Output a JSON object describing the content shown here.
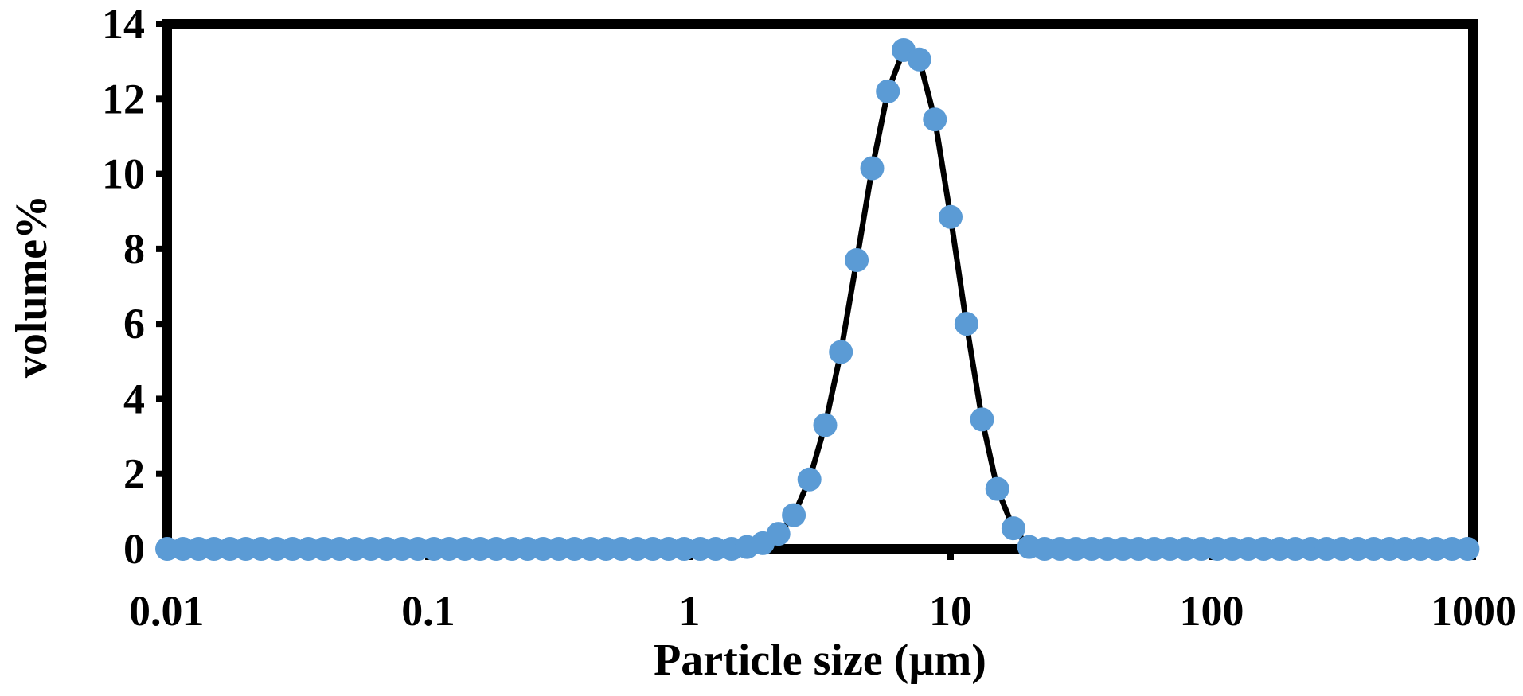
{
  "chart_data": {
    "type": "line",
    "xlabel": "Particle size (µm)",
    "ylabel": "volume%",
    "x_scale": "log",
    "xlim": [
      0.01,
      1000
    ],
    "ylim": [
      0,
      14
    ],
    "x_tick_values": [
      0.01,
      0.1,
      1,
      10,
      100,
      1000
    ],
    "x_tick_labels": [
      "0.01",
      "0.1",
      "1",
      "10",
      "100",
      "1000"
    ],
    "y_tick_values": [
      0,
      2,
      4,
      6,
      8,
      10,
      12,
      14
    ],
    "y_tick_labels": [
      "0",
      "2",
      "4",
      "6",
      "8",
      "10",
      "12",
      "14"
    ],
    "grid": false,
    "line_color": "#000000",
    "marker_color": "#5b9bd5",
    "series": [
      {
        "x": [
          0.01,
          0.0115,
          0.0132,
          0.0151,
          0.0174,
          0.02,
          0.0229,
          0.0263,
          0.0302,
          0.0347,
          0.0398,
          0.0457,
          0.0525,
          0.0603,
          0.0692,
          0.0794,
          0.0912,
          0.105,
          0.12,
          0.138,
          0.158,
          0.182,
          0.209,
          0.24,
          0.275,
          0.316,
          0.363,
          0.417,
          0.479,
          0.55,
          0.631,
          0.724,
          0.832,
          0.955,
          1.1,
          1.26,
          1.45,
          1.66,
          1.91,
          2.19,
          2.51,
          2.88,
          3.31,
          3.8,
          4.37,
          5.01,
          5.75,
          6.61,
          7.59,
          8.71,
          10.0,
          11.5,
          13.2,
          15.1,
          17.4,
          20.0,
          22.9,
          26.3,
          30.2,
          34.7,
          39.8,
          45.7,
          52.5,
          60.3,
          69.2,
          79.4,
          91.2,
          105,
          120,
          138,
          158,
          182,
          209,
          240,
          275,
          316,
          363,
          417,
          479,
          550,
          631,
          724,
          832,
          955
        ],
        "y": [
          0,
          0,
          0,
          0,
          0,
          0,
          0,
          0,
          0,
          0,
          0,
          0,
          0,
          0,
          0,
          0,
          0,
          0,
          0,
          0,
          0,
          0,
          0,
          0,
          0,
          0,
          0,
          0,
          0,
          0,
          0,
          0,
          0,
          0,
          0,
          0,
          0,
          0.05,
          0.15,
          0.4,
          0.9,
          1.85,
          3.3,
          5.25,
          7.7,
          10.15,
          12.2,
          13.3,
          13.05,
          11.45,
          8.85,
          6.0,
          3.45,
          1.6,
          0.55,
          0.05,
          0,
          0,
          0,
          0,
          0,
          0,
          0,
          0,
          0,
          0,
          0,
          0,
          0,
          0,
          0,
          0,
          0,
          0,
          0,
          0,
          0,
          0,
          0,
          0,
          0,
          0,
          0,
          0
        ]
      }
    ]
  }
}
